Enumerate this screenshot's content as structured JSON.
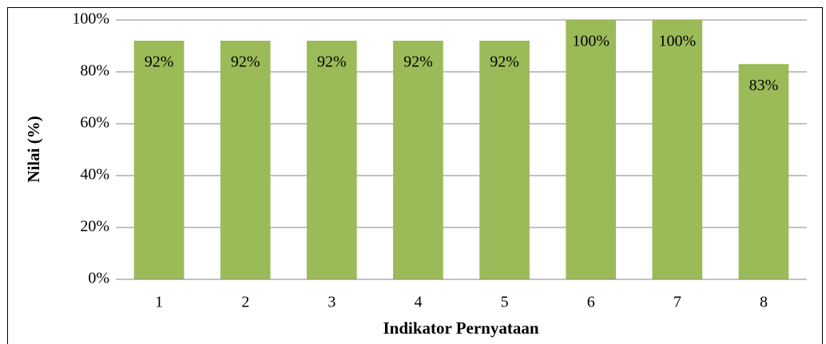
{
  "chart_data": {
    "type": "bar",
    "x_label": "Indikator Pernyataan",
    "y_label": "Nilai (%)",
    "categories": [
      "1",
      "2",
      "3",
      "4",
      "5",
      "6",
      "7",
      "8"
    ],
    "values": [
      92,
      92,
      92,
      92,
      92,
      100,
      100,
      83
    ],
    "value_labels": [
      "92%",
      "92%",
      "92%",
      "92%",
      "92%",
      "100%",
      "100%",
      "83%"
    ],
    "color": "#9bbb59",
    "ylim": [
      0,
      100
    ],
    "yticks": [
      {
        "value": 0,
        "label": "0%"
      },
      {
        "value": 20,
        "label": "20%"
      },
      {
        "value": 40,
        "label": "40%"
      },
      {
        "value": 60,
        "label": "60%"
      },
      {
        "value": 80,
        "label": "80%"
      },
      {
        "value": 100,
        "label": "100%"
      }
    ],
    "grid": true
  }
}
